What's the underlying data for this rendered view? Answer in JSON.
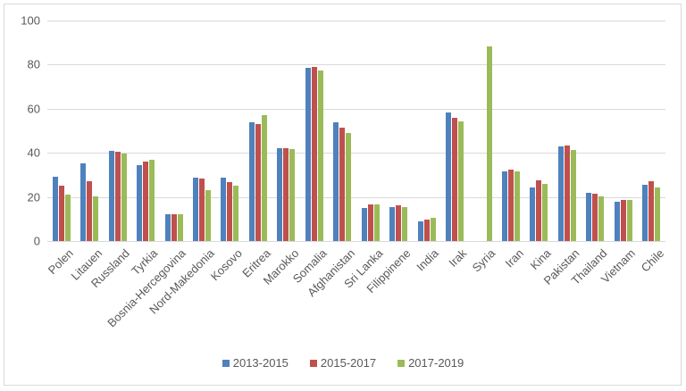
{
  "chart_data": {
    "type": "bar",
    "title": "",
    "xlabel": "",
    "ylabel": "",
    "ylim": [
      0,
      100
    ],
    "yticks": [
      0,
      20,
      40,
      60,
      80,
      100
    ],
    "grid": true,
    "legend_position": "bottom",
    "categories": [
      "Polen",
      "Litauen",
      "Russland",
      "Tyrkia",
      "Bosnia-Hercegovina",
      "Nord-Makedonia",
      "Kosovo",
      "Eritrea",
      "Marokko",
      "Somalia",
      "Afghanistan",
      "Sri Lanka",
      "Filippinene",
      "India",
      "Irak",
      "Syria",
      "Iran",
      "Kina",
      "Pakistan",
      "Thailand",
      "Vietnam",
      "Chile"
    ],
    "series": [
      {
        "name": "2013-2015",
        "color": "#4f81bd",
        "values": [
          29.0,
          35.3,
          40.7,
          34.5,
          12.3,
          28.6,
          28.9,
          53.7,
          42.0,
          78.7,
          53.7,
          15.0,
          15.4,
          8.9,
          58.2,
          null,
          31.5,
          24.1,
          43.1,
          21.8,
          17.8,
          25.5
        ]
      },
      {
        "name": "2015-2017",
        "color": "#c0504d",
        "values": [
          25.1,
          27.0,
          40.3,
          35.9,
          12.3,
          28.3,
          26.7,
          53.0,
          42.1,
          78.8,
          51.4,
          16.7,
          16.2,
          9.7,
          55.7,
          null,
          32.5,
          27.4,
          43.2,
          21.5,
          18.6,
          27.0
        ]
      },
      {
        "name": "2017-2019",
        "color": "#9bbb59",
        "values": [
          21.2,
          20.2,
          39.6,
          36.8,
          12.1,
          23.2,
          25.0,
          57.0,
          41.7,
          77.4,
          48.8,
          16.7,
          15.5,
          10.5,
          54.1,
          88.3,
          31.6,
          25.9,
          41.1,
          20.3,
          18.6,
          24.3
        ]
      }
    ]
  },
  "legend": [
    {
      "label": "2013-2015",
      "color": "#4f81bd"
    },
    {
      "label": "2015-2017",
      "color": "#c0504d"
    },
    {
      "label": "2017-2019",
      "color": "#9bbb59"
    }
  ]
}
